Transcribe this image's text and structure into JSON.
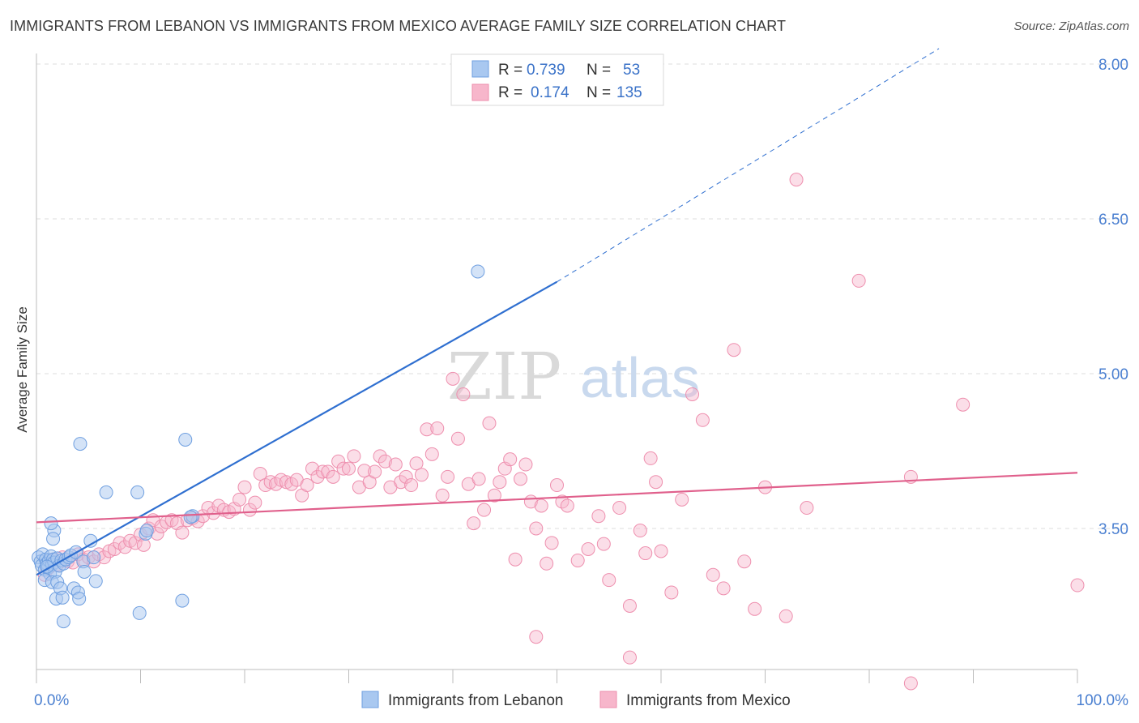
{
  "title": "IMMIGRANTS FROM LEBANON VS IMMIGRANTS FROM MEXICO AVERAGE FAMILY SIZE CORRELATION CHART",
  "source": "Source: ZipAtlas.com",
  "watermark": {
    "part1": "ZIP",
    "part2": "atlas"
  },
  "chart_data": {
    "type": "scatter",
    "title": "IMMIGRANTS FROM LEBANON VS IMMIGRANTS FROM MEXICO AVERAGE FAMILY SIZE CORRELATION CHART",
    "xlabel": "",
    "ylabel": "Average Family Size",
    "xlim": [
      0,
      100
    ],
    "ylim": [
      2.2,
      8.25
    ],
    "x_tick_labels": [
      "0.0%",
      "100.0%"
    ],
    "y_ticks": [
      3.5,
      5.0,
      6.5,
      8.0
    ],
    "y_tick_labels": [
      "3.50",
      "5.00",
      "6.50",
      "8.00"
    ],
    "grid": "horizontal dashed",
    "legend": {
      "placement": "top-center",
      "rows": [
        {
          "r_label": "R =",
          "r_value": "0.739",
          "n_label": "N =",
          "n_value": "53"
        },
        {
          "r_label": "R =",
          "r_value": "0.174",
          "n_label": "N =",
          "n_value": "135"
        }
      ]
    },
    "colors": {
      "lebanon_fill": "#a9c8f0",
      "lebanon_stroke": "#6f9fe0",
      "lebanon_line": "#2f6fd0",
      "mexico_fill": "#f7b6cb",
      "mexico_stroke": "#ee8fae",
      "mexico_line": "#e0608c"
    },
    "series": [
      {
        "name": "Immigrants from Lebanon",
        "r": 0.739,
        "n": 53,
        "trend": {
          "x": [
            0,
            50
          ],
          "y": [
            3.05,
            5.89
          ],
          "dashed_extension_to": [
            86.7,
            8.15
          ]
        },
        "points": [
          [
            0.2,
            3.22
          ],
          [
            0.4,
            3.18
          ],
          [
            0.5,
            3.14
          ],
          [
            0.6,
            3.25
          ],
          [
            0.8,
            3.1
          ],
          [
            0.9,
            3.2
          ],
          [
            1.0,
            3.16
          ],
          [
            1.1,
            3.12
          ],
          [
            1.2,
            3.19
          ],
          [
            1.3,
            3.06
          ],
          [
            1.4,
            3.23
          ],
          [
            1.5,
            3.15
          ],
          [
            1.6,
            3.2
          ],
          [
            1.7,
            3.17
          ],
          [
            1.8,
            3.08
          ],
          [
            2.0,
            3.21
          ],
          [
            2.2,
            3.14
          ],
          [
            2.4,
            3.19
          ],
          [
            2.6,
            3.16
          ],
          [
            0.8,
            3.0
          ],
          [
            1.5,
            2.98
          ],
          [
            1.7,
            3.48
          ],
          [
            1.6,
            3.4
          ],
          [
            1.4,
            3.55
          ],
          [
            1.9,
            2.82
          ],
          [
            2.0,
            2.98
          ],
          [
            2.3,
            2.92
          ],
          [
            2.5,
            2.83
          ],
          [
            2.6,
            2.6
          ],
          [
            2.8,
            3.2
          ],
          [
            3.1,
            3.22
          ],
          [
            3.3,
            3.24
          ],
          [
            3.6,
            2.92
          ],
          [
            3.8,
            3.27
          ],
          [
            4.0,
            2.88
          ],
          [
            4.1,
            2.82
          ],
          [
            4.2,
            4.32
          ],
          [
            4.5,
            3.18
          ],
          [
            4.6,
            3.08
          ],
          [
            5.2,
            3.38
          ],
          [
            5.5,
            3.22
          ],
          [
            5.7,
            2.99
          ],
          [
            6.7,
            3.85
          ],
          [
            9.7,
            3.85
          ],
          [
            9.9,
            2.68
          ],
          [
            10.5,
            3.45
          ],
          [
            10.6,
            3.48
          ],
          [
            14.0,
            2.8
          ],
          [
            14.3,
            4.36
          ],
          [
            15.0,
            3.62
          ],
          [
            14.8,
            3.61
          ],
          [
            42.4,
            5.99
          ],
          [
            1.0,
            3.13
          ]
        ]
      },
      {
        "name": "Immigrants from Mexico",
        "r": 0.174,
        "n": 135,
        "trend": {
          "x": [
            0,
            100
          ],
          "y": [
            3.56,
            4.04
          ]
        },
        "points": [
          [
            0.8,
            3.05
          ],
          [
            1.2,
            3.12
          ],
          [
            1.6,
            3.2
          ],
          [
            2.0,
            3.15
          ],
          [
            2.5,
            3.22
          ],
          [
            3.0,
            3.18
          ],
          [
            3.5,
            3.17
          ],
          [
            4.0,
            3.25
          ],
          [
            4.5,
            3.2
          ],
          [
            5.0,
            3.22
          ],
          [
            5.5,
            3.18
          ],
          [
            6.0,
            3.25
          ],
          [
            6.5,
            3.22
          ],
          [
            7.0,
            3.28
          ],
          [
            7.5,
            3.3
          ],
          [
            8.0,
            3.36
          ],
          [
            8.5,
            3.32
          ],
          [
            9.0,
            3.38
          ],
          [
            9.5,
            3.36
          ],
          [
            10.0,
            3.44
          ],
          [
            10.3,
            3.34
          ],
          [
            10.8,
            3.5
          ],
          [
            11.2,
            3.58
          ],
          [
            11.6,
            3.45
          ],
          [
            12.0,
            3.52
          ],
          [
            12.5,
            3.56
          ],
          [
            13.0,
            3.58
          ],
          [
            13.5,
            3.55
          ],
          [
            14.0,
            3.46
          ],
          [
            14.5,
            3.58
          ],
          [
            15.0,
            3.6
          ],
          [
            15.5,
            3.57
          ],
          [
            16.0,
            3.62
          ],
          [
            16.5,
            3.7
          ],
          [
            17.0,
            3.65
          ],
          [
            17.5,
            3.72
          ],
          [
            18.0,
            3.68
          ],
          [
            18.5,
            3.66
          ],
          [
            19.0,
            3.69
          ],
          [
            19.5,
            3.78
          ],
          [
            20.0,
            3.9
          ],
          [
            20.5,
            3.68
          ],
          [
            21.0,
            3.75
          ],
          [
            21.5,
            4.03
          ],
          [
            22.0,
            3.92
          ],
          [
            22.5,
            3.95
          ],
          [
            23.0,
            3.93
          ],
          [
            23.5,
            3.97
          ],
          [
            24.0,
            3.95
          ],
          [
            24.5,
            3.93
          ],
          [
            25.0,
            3.97
          ],
          [
            25.5,
            3.82
          ],
          [
            26.0,
            3.92
          ],
          [
            26.5,
            4.08
          ],
          [
            27.0,
            4.0
          ],
          [
            27.5,
            4.05
          ],
          [
            28.0,
            4.05
          ],
          [
            28.5,
            4.0
          ],
          [
            29.0,
            4.15
          ],
          [
            29.5,
            4.08
          ],
          [
            30.0,
            4.08
          ],
          [
            30.5,
            4.2
          ],
          [
            31.0,
            3.9
          ],
          [
            31.5,
            4.06
          ],
          [
            32.0,
            3.95
          ],
          [
            32.5,
            4.05
          ],
          [
            33.0,
            4.2
          ],
          [
            33.5,
            4.15
          ],
          [
            34.0,
            3.9
          ],
          [
            34.5,
            4.12
          ],
          [
            35.0,
            3.95
          ],
          [
            35.5,
            4.0
          ],
          [
            36.0,
            3.92
          ],
          [
            36.5,
            4.13
          ],
          [
            37.0,
            4.02
          ],
          [
            37.5,
            4.46
          ],
          [
            38.0,
            4.22
          ],
          [
            38.5,
            4.47
          ],
          [
            39.0,
            3.82
          ],
          [
            39.5,
            4.0
          ],
          [
            40.0,
            4.95
          ],
          [
            40.5,
            4.37
          ],
          [
            41.0,
            4.8
          ],
          [
            41.5,
            3.93
          ],
          [
            42.0,
            3.55
          ],
          [
            42.5,
            3.98
          ],
          [
            43.0,
            3.68
          ],
          [
            43.5,
            4.52
          ],
          [
            44.0,
            3.82
          ],
          [
            44.5,
            3.95
          ],
          [
            45.0,
            4.08
          ],
          [
            45.5,
            4.17
          ],
          [
            46.0,
            3.2
          ],
          [
            46.5,
            3.98
          ],
          [
            47.0,
            4.12
          ],
          [
            47.5,
            3.76
          ],
          [
            48.0,
            3.5
          ],
          [
            48.5,
            3.72
          ],
          [
            49.0,
            3.16
          ],
          [
            49.5,
            3.36
          ],
          [
            50.0,
            3.92
          ],
          [
            50.5,
            3.76
          ],
          [
            51.0,
            3.72
          ],
          [
            52.0,
            3.19
          ],
          [
            53.0,
            3.3
          ],
          [
            54.0,
            3.62
          ],
          [
            54.5,
            3.35
          ],
          [
            55.0,
            3.0
          ],
          [
            56.0,
            3.7
          ],
          [
            57.0,
            2.75
          ],
          [
            58.0,
            3.48
          ],
          [
            58.5,
            3.26
          ],
          [
            59.0,
            4.18
          ],
          [
            59.5,
            3.95
          ],
          [
            60.0,
            3.28
          ],
          [
            61.0,
            2.88
          ],
          [
            62.0,
            3.78
          ],
          [
            63.0,
            4.8
          ],
          [
            64.0,
            4.55
          ],
          [
            65.0,
            3.05
          ],
          [
            66.0,
            2.92
          ],
          [
            67.0,
            5.23
          ],
          [
            68.0,
            3.18
          ],
          [
            69.0,
            2.72
          ],
          [
            70.0,
            3.9
          ],
          [
            72.0,
            2.65
          ],
          [
            73.0,
            6.88
          ],
          [
            74.0,
            3.7
          ],
          [
            79.0,
            5.9
          ],
          [
            84.0,
            4.0
          ],
          [
            89.0,
            4.7
          ],
          [
            100.0,
            2.95
          ],
          [
            57.0,
            2.25
          ],
          [
            48.0,
            2.45
          ],
          [
            84.0,
            2.0
          ]
        ]
      }
    ]
  },
  "bottom_legend": [
    {
      "label": "Immigrants from Lebanon"
    },
    {
      "label": "Immigrants from Mexico"
    }
  ]
}
